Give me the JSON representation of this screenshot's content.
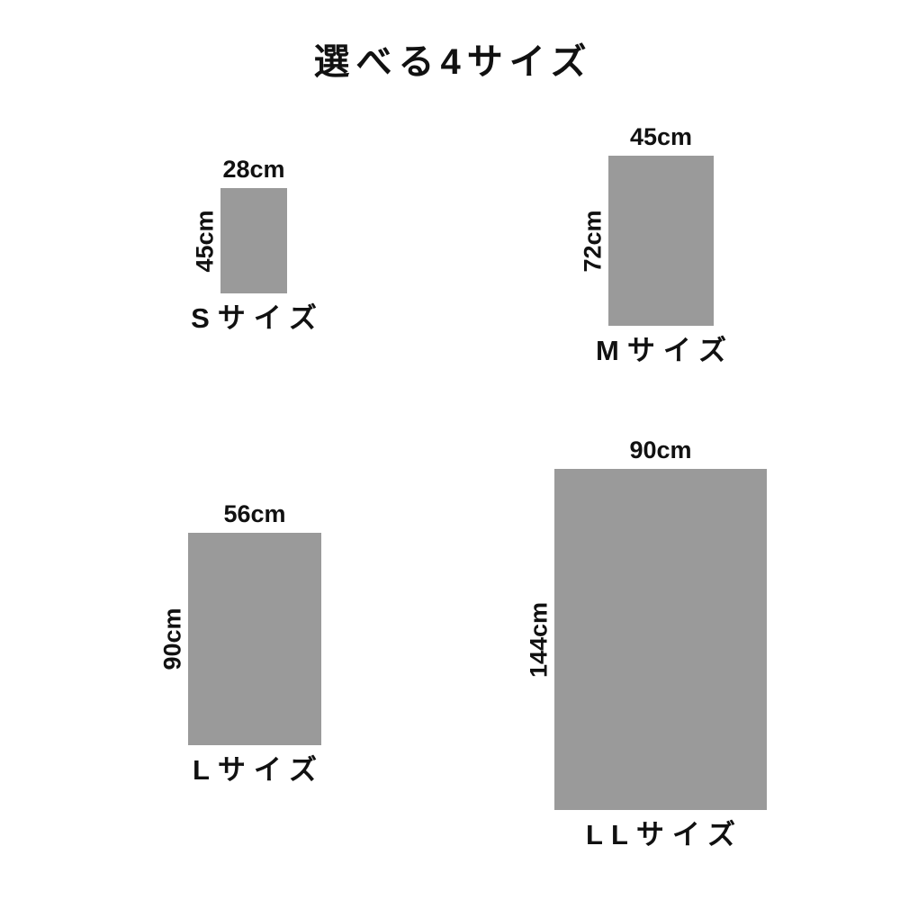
{
  "title": "選べる4サイズ",
  "colors": {
    "background": "#ffffff",
    "rect": "#9a9a9a",
    "text": "#111111"
  },
  "sizes": [
    {
      "id": "S",
      "label": "Sサイズ",
      "width_label": "28cm",
      "height_label": "45cm",
      "width_cm": 28,
      "height_cm": 45
    },
    {
      "id": "M",
      "label": "Mサイズ",
      "width_label": "45cm",
      "height_label": "72cm",
      "width_cm": 45,
      "height_cm": 72
    },
    {
      "id": "L",
      "label": "Lサイズ",
      "width_label": "56cm",
      "height_label": "90cm",
      "width_cm": 56,
      "height_cm": 90
    },
    {
      "id": "LL",
      "label": "LLサイズ",
      "width_label": "90cm",
      "height_label": "144cm",
      "width_cm": 90,
      "height_cm": 144
    }
  ]
}
